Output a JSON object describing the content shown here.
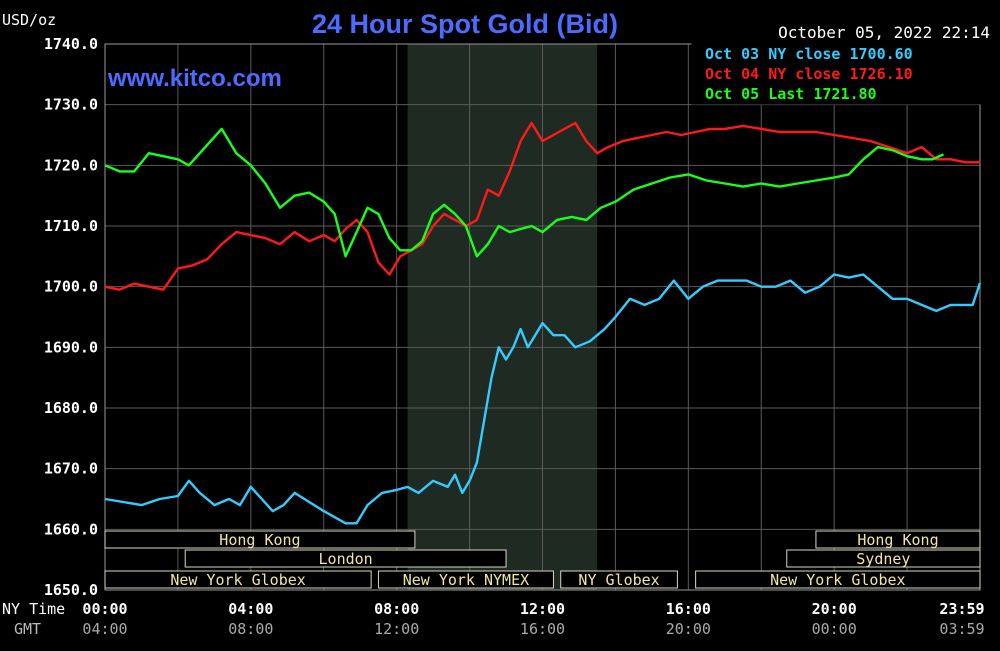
{
  "title": "24 Hour Spot Gold (Bid)",
  "watermark": "www.kitco.com",
  "unit_label": "USD/oz",
  "timestamp": "October 05, 2022 22:14",
  "legend": [
    {
      "label": "Oct 03 NY close 1700.60",
      "color": "#33ccff"
    },
    {
      "label": "Oct 04 NY close 1726.10",
      "color": "#ff1a1a"
    },
    {
      "label": "Oct 05 Last 1721.80",
      "color": "#1aff1a"
    }
  ],
  "axis_row_labels": {
    "ny": "NY Time",
    "gmt": "GMT"
  },
  "sessions": [
    {
      "row": 0,
      "label": "Hong Kong",
      "start": 0,
      "end": 8.5
    },
    {
      "row": 0,
      "label": "Hong Kong",
      "start": 19.5,
      "end": 24
    },
    {
      "row": 1,
      "label": "London",
      "start": 2.2,
      "end": 11.0
    },
    {
      "row": 1,
      "label": "Sydney",
      "start": 18.7,
      "end": 24
    },
    {
      "row": 2,
      "label": "New York Globex",
      "start": 0,
      "end": 7.3
    },
    {
      "row": 2,
      "label": "New York NYMEX",
      "start": 7.5,
      "end": 12.3
    },
    {
      "row": 2,
      "label": "NY Globex",
      "start": 12.5,
      "end": 15.7
    },
    {
      "row": 2,
      "label": "New York Globex",
      "start": 16.2,
      "end": 24
    }
  ],
  "chart_data": {
    "type": "line",
    "title": "24 Hour Spot Gold (Bid)",
    "ylabel": "USD/oz",
    "ylim": [
      1650,
      1740
    ],
    "yticks": [
      "1740.0",
      "1730.0",
      "1720.0",
      "1710.0",
      "1700.0",
      "1690.0",
      "1680.0",
      "1670.0",
      "1660.0",
      "1650.0"
    ],
    "xlim": [
      0,
      24
    ],
    "xticks": [
      {
        "x": 0,
        "ny": "00:00",
        "gmt": "04:00"
      },
      {
        "x": 4,
        "ny": "04:00",
        "gmt": "08:00"
      },
      {
        "x": 8,
        "ny": "08:00",
        "gmt": "12:00"
      },
      {
        "x": 12,
        "ny": "12:00",
        "gmt": "16:00"
      },
      {
        "x": 16,
        "ny": "16:00",
        "gmt": "20:00"
      },
      {
        "x": 20,
        "ny": "20:00",
        "gmt": "00:00"
      },
      {
        "x": 24,
        "ny": "23:59",
        "gmt": "03:59"
      }
    ],
    "shaded_range": [
      8.3,
      13.5
    ],
    "grid": true,
    "series": [
      {
        "name": "Oct 03 NY close 1700.60",
        "color": "#33ccff",
        "x": [
          0,
          0.5,
          1,
          1.5,
          2,
          2.3,
          2.6,
          3,
          3.4,
          3.7,
          4,
          4.3,
          4.6,
          4.9,
          5.2,
          5.6,
          6,
          6.3,
          6.6,
          6.9,
          7.2,
          7.6,
          8,
          8.3,
          8.6,
          9,
          9.4,
          9.6,
          9.8,
          10,
          10.2,
          10.4,
          10.6,
          10.8,
          11,
          11.2,
          11.4,
          11.6,
          11.8,
          12,
          12.3,
          12.6,
          12.9,
          13.3,
          13.7,
          14,
          14.4,
          14.8,
          15.2,
          15.6,
          16,
          16.4,
          16.8,
          17.2,
          17.6,
          18,
          18.4,
          18.8,
          19.2,
          19.6,
          20,
          20.4,
          20.8,
          21.2,
          21.6,
          22,
          22.4,
          22.8,
          23.2,
          23.5,
          23.8,
          24
        ],
        "y": [
          1665,
          1664.5,
          1664,
          1665,
          1665.5,
          1668,
          1666,
          1664,
          1665,
          1664,
          1667,
          1665,
          1663,
          1664,
          1666,
          1664.5,
          1663,
          1662,
          1661,
          1661,
          1664,
          1666,
          1666.5,
          1667,
          1666,
          1668,
          1667,
          1669,
          1666,
          1668,
          1671,
          1678,
          1685,
          1690,
          1688,
          1690,
          1693,
          1690,
          1692,
          1694,
          1692,
          1692,
          1690,
          1691,
          1693,
          1695,
          1698,
          1697,
          1698,
          1701,
          1698,
          1700,
          1701,
          1701,
          1701,
          1700,
          1700,
          1701,
          1699,
          1700,
          1702,
          1701.5,
          1702,
          1700,
          1698,
          1698,
          1697,
          1696,
          1697,
          1697,
          1697,
          1700.6
        ]
      },
      {
        "name": "Oct 04 NY close 1726.10",
        "color": "#ff1a1a",
        "x": [
          0,
          0.4,
          0.8,
          1.2,
          1.6,
          2,
          2.4,
          2.8,
          3.2,
          3.6,
          4,
          4.4,
          4.8,
          5.2,
          5.6,
          6,
          6.3,
          6.6,
          6.9,
          7.2,
          7.5,
          7.8,
          8.1,
          8.4,
          8.7,
          9,
          9.3,
          9.6,
          9.9,
          10.2,
          10.5,
          10.8,
          11.1,
          11.4,
          11.7,
          12,
          12.3,
          12.6,
          12.9,
          13.2,
          13.5,
          13.8,
          14.2,
          14.6,
          15,
          15.4,
          15.8,
          16.2,
          16.6,
          17,
          17.5,
          18,
          18.5,
          19,
          19.5,
          20,
          20.5,
          21,
          21.5,
          22,
          22.4,
          22.8,
          23.2,
          23.6,
          24
        ],
        "y": [
          1700,
          1699.5,
          1700.5,
          1700,
          1699.5,
          1703,
          1703.5,
          1704.5,
          1707,
          1709,
          1708.5,
          1708,
          1707,
          1709,
          1707.5,
          1708.5,
          1707.5,
          1709.5,
          1711,
          1709,
          1704,
          1702,
          1705,
          1706,
          1707,
          1710,
          1712,
          1711,
          1710,
          1711,
          1716,
          1715,
          1719,
          1724,
          1727,
          1724,
          1725,
          1726,
          1727,
          1724,
          1722,
          1723,
          1724,
          1724.5,
          1725,
          1725.5,
          1725,
          1725.5,
          1726,
          1726,
          1726.5,
          1726,
          1725.5,
          1725.5,
          1725.5,
          1725,
          1724.5,
          1724,
          1723,
          1722,
          1723,
          1721,
          1721,
          1720.5,
          1720.5
        ]
      },
      {
        "name": "Oct 05 Last 1721.80",
        "color": "#1aff1a",
        "x": [
          0,
          0.4,
          0.8,
          1.2,
          1.6,
          2,
          2.3,
          2.6,
          2.9,
          3.2,
          3.6,
          4,
          4.4,
          4.8,
          5.2,
          5.6,
          6,
          6.3,
          6.6,
          6.9,
          7.2,
          7.5,
          7.8,
          8.1,
          8.4,
          8.7,
          9,
          9.3,
          9.6,
          9.9,
          10.2,
          10.5,
          10.8,
          11.1,
          11.4,
          11.7,
          12,
          12.4,
          12.8,
          13.2,
          13.6,
          14,
          14.5,
          15,
          15.5,
          16,
          16.5,
          17,
          17.5,
          18,
          18.5,
          19,
          19.5,
          20,
          20.4,
          20.8,
          21.2,
          21.6,
          22,
          22.4,
          22.7,
          23
        ],
        "y": [
          1720,
          1719,
          1719,
          1722,
          1721.5,
          1721,
          1720,
          1722,
          1724,
          1726,
          1722,
          1720,
          1717,
          1713,
          1715,
          1715.5,
          1714,
          1712,
          1705,
          1709,
          1713,
          1712,
          1708,
          1706,
          1706,
          1707.5,
          1712,
          1713.5,
          1712,
          1710,
          1705,
          1707,
          1710,
          1709,
          1709.5,
          1710,
          1709,
          1711,
          1711.5,
          1711,
          1713,
          1714,
          1716,
          1717,
          1718,
          1718.5,
          1717.5,
          1717,
          1716.5,
          1717,
          1716.5,
          1717,
          1717.5,
          1718,
          1718.5,
          1721,
          1723,
          1722.5,
          1721.5,
          1721,
          1721,
          1721.8
        ]
      }
    ]
  }
}
